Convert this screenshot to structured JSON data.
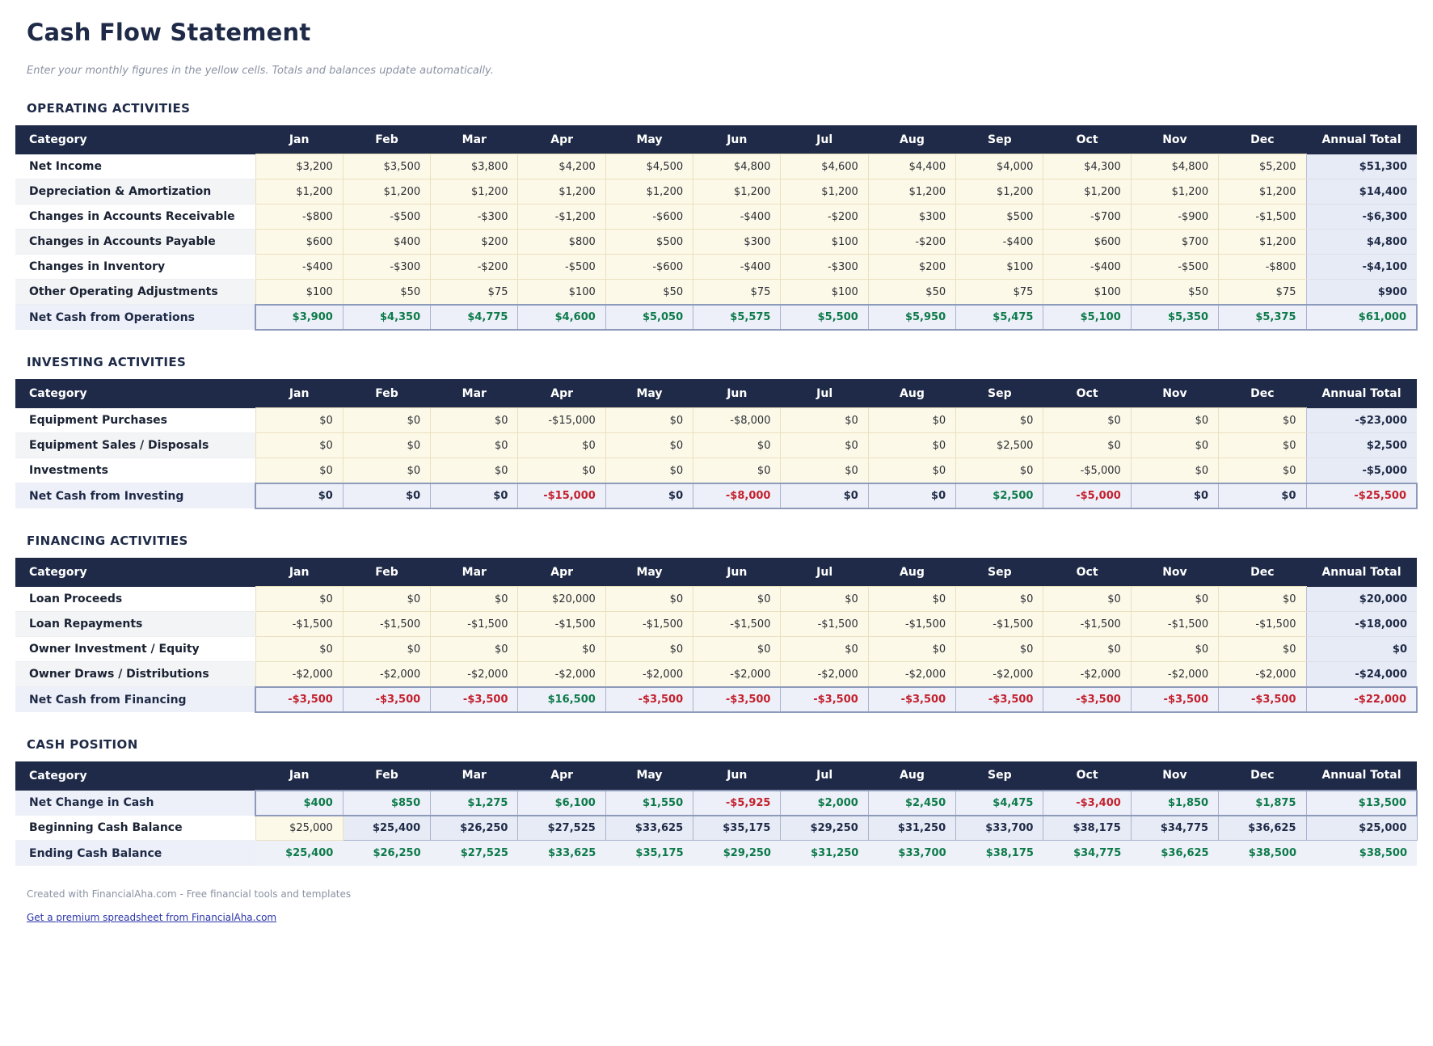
{
  "page": {
    "title": "Cash Flow Statement",
    "subtitle": "Enter your monthly figures in the yellow cells. Totals and balances update automatically.",
    "footer_note": "Created with FinancialAha.com - Free financial tools and templates",
    "footer_link": "Get a premium spreadsheet from FinancialAha.com"
  },
  "colors": {
    "navy": "#1e2a47",
    "header_text": "#ffffff",
    "green": "#0d7a4a",
    "red": "#c4202e",
    "input_bg": "#fdf9e8",
    "input_border": "#e9e0bf",
    "calc_bg": "#e7ebf5",
    "total_bg": "#edf0f8",
    "total_border": "#8d9aba",
    "alt_row": "#f3f4f6",
    "muted": "#8a92a3",
    "link": "#2b35a8"
  },
  "columns": [
    "Category",
    "Jan",
    "Feb",
    "Mar",
    "Apr",
    "May",
    "Jun",
    "Jul",
    "Aug",
    "Sep",
    "Oct",
    "Nov",
    "Dec",
    "Annual Total"
  ],
  "sections": [
    {
      "id": "operating",
      "heading": "OPERATING ACTIVITIES",
      "rows": [
        {
          "label": "Net Income",
          "type": "input",
          "alt": false,
          "values": [
            3200,
            3500,
            3800,
            4200,
            4500,
            4800,
            4600,
            4400,
            4000,
            4300,
            4800,
            5200
          ],
          "total": 51300
        },
        {
          "label": "Depreciation & Amortization",
          "type": "input",
          "alt": true,
          "values": [
            1200,
            1200,
            1200,
            1200,
            1200,
            1200,
            1200,
            1200,
            1200,
            1200,
            1200,
            1200
          ],
          "total": 14400
        },
        {
          "label": "Changes in Accounts Receivable",
          "type": "input",
          "alt": false,
          "values": [
            -800,
            -500,
            -300,
            -1200,
            -600,
            -400,
            -200,
            300,
            500,
            -700,
            -900,
            -1500
          ],
          "total": -6300
        },
        {
          "label": "Changes in Accounts Payable",
          "type": "input",
          "alt": true,
          "values": [
            600,
            400,
            200,
            800,
            500,
            300,
            100,
            -200,
            -400,
            600,
            700,
            1200
          ],
          "total": 4800
        },
        {
          "label": "Changes in Inventory",
          "type": "input",
          "alt": false,
          "values": [
            -400,
            -300,
            -200,
            -500,
            -600,
            -400,
            -300,
            200,
            100,
            -400,
            -500,
            -800
          ],
          "total": -4100
        },
        {
          "label": "Other Operating Adjustments",
          "type": "input",
          "alt": true,
          "values": [
            100,
            50,
            75,
            100,
            50,
            75,
            100,
            50,
            75,
            100,
            50,
            75
          ],
          "total": 900
        },
        {
          "label": "Net Cash from Operations",
          "type": "total",
          "alt": false,
          "values": [
            3900,
            4350,
            4775,
            4600,
            5050,
            5575,
            5500,
            5950,
            5475,
            5100,
            5350,
            5375
          ],
          "total": 61000
        }
      ]
    },
    {
      "id": "investing",
      "heading": "INVESTING ACTIVITIES",
      "rows": [
        {
          "label": "Equipment Purchases",
          "type": "input",
          "alt": false,
          "values": [
            0,
            0,
            0,
            -15000,
            0,
            -8000,
            0,
            0,
            0,
            0,
            0,
            0
          ],
          "total": -23000
        },
        {
          "label": "Equipment Sales / Disposals",
          "type": "input",
          "alt": true,
          "values": [
            0,
            0,
            0,
            0,
            0,
            0,
            0,
            0,
            2500,
            0,
            0,
            0
          ],
          "total": 2500
        },
        {
          "label": "Investments",
          "type": "input",
          "alt": false,
          "values": [
            0,
            0,
            0,
            0,
            0,
            0,
            0,
            0,
            0,
            -5000,
            0,
            0
          ],
          "total": -5000
        },
        {
          "label": "Net Cash from Investing",
          "type": "total",
          "alt": false,
          "values": [
            0,
            0,
            0,
            -15000,
            0,
            -8000,
            0,
            0,
            2500,
            -5000,
            0,
            0
          ],
          "total": -25500
        }
      ]
    },
    {
      "id": "financing",
      "heading": "FINANCING ACTIVITIES",
      "rows": [
        {
          "label": "Loan Proceeds",
          "type": "input",
          "alt": false,
          "values": [
            0,
            0,
            0,
            20000,
            0,
            0,
            0,
            0,
            0,
            0,
            0,
            0
          ],
          "total": 20000
        },
        {
          "label": "Loan Repayments",
          "type": "input",
          "alt": true,
          "values": [
            -1500,
            -1500,
            -1500,
            -1500,
            -1500,
            -1500,
            -1500,
            -1500,
            -1500,
            -1500,
            -1500,
            -1500
          ],
          "total": -18000
        },
        {
          "label": "Owner Investment / Equity",
          "type": "input",
          "alt": false,
          "values": [
            0,
            0,
            0,
            0,
            0,
            0,
            0,
            0,
            0,
            0,
            0,
            0
          ],
          "total": 0
        },
        {
          "label": "Owner Draws / Distributions",
          "type": "input",
          "alt": true,
          "values": [
            -2000,
            -2000,
            -2000,
            -2000,
            -2000,
            -2000,
            -2000,
            -2000,
            -2000,
            -2000,
            -2000,
            -2000
          ],
          "total": -24000
        },
        {
          "label": "Net Cash from Financing",
          "type": "total",
          "alt": false,
          "values": [
            -3500,
            -3500,
            -3500,
            16500,
            -3500,
            -3500,
            -3500,
            -3500,
            -3500,
            -3500,
            -3500,
            -3500
          ],
          "total": -22000
        }
      ]
    },
    {
      "id": "cash-position",
      "heading": "CASH POSITION",
      "rows": [
        {
          "label": "Net Change in Cash",
          "type": "total",
          "alt": false,
          "values": [
            400,
            850,
            1275,
            6100,
            1550,
            -5925,
            2000,
            2450,
            4475,
            -3400,
            1850,
            1875
          ],
          "total": 13500
        },
        {
          "label": "Beginning Cash Balance",
          "type": "begin",
          "alt": false,
          "values": [
            25000,
            25400,
            26250,
            27525,
            33625,
            35175,
            29250,
            31250,
            33700,
            38175,
            34775,
            36625
          ],
          "total": 25000
        },
        {
          "label": "Ending Cash Balance",
          "type": "end",
          "alt": false,
          "values": [
            25400,
            26250,
            27525,
            33625,
            35175,
            29250,
            31250,
            33700,
            38175,
            34775,
            36625,
            38500
          ],
          "total": 38500
        }
      ]
    }
  ]
}
